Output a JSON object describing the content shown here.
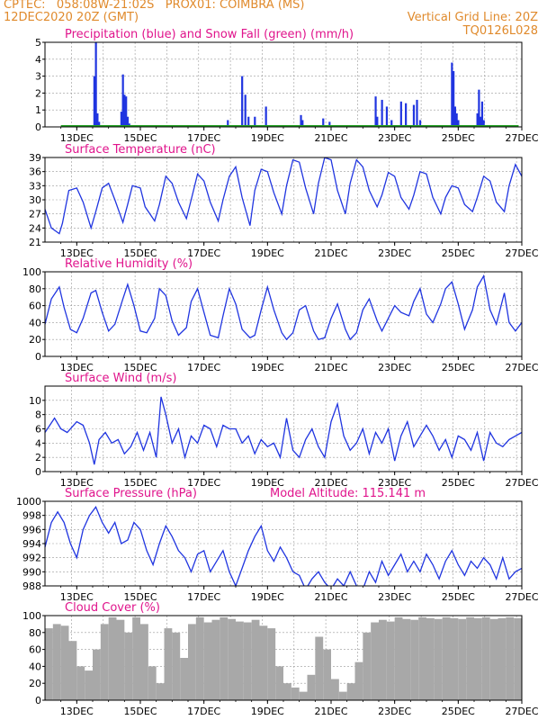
{
  "header": {
    "left_line1": "CPTEC:   058:08W-21:02S   PROX01: COIMBRA (MS)",
    "left_line2": "12DEC2020 20Z (GMT)",
    "right_line2": "Vertical Grid Line: 20Z",
    "right_line3": "TQ0126L028"
  },
  "colors": {
    "header": "#e08a2c",
    "title": "#e0148c",
    "line": "#2035e0",
    "snow": "#22a022",
    "cloud": "#a8a8a8"
  },
  "chart_data": [
    {
      "type": "bar",
      "title": "Precipitation (blue) and Snow Fall (green) (mm/h)",
      "ylim": [
        0,
        5
      ],
      "yticks": [
        "0",
        "1",
        "2",
        "3",
        "4",
        "5"
      ],
      "xticks": [
        "13DEC",
        "15DEC",
        "17DEC",
        "19DEC",
        "21DEC",
        "23DEC",
        "25DEC",
        "27DEC"
      ],
      "series": [
        {
          "color": "blue",
          "x": [
            13.55,
            13.6,
            13.65,
            13.7,
            14.4,
            14.45,
            14.5,
            14.55,
            14.6,
            14.65,
            17.75,
            18.2,
            18.3,
            18.4,
            18.6,
            18.95,
            20.05,
            20.1,
            20.75,
            20.95,
            22.4,
            22.45,
            22.6,
            22.75,
            22.9,
            23.2,
            23.35,
            23.6,
            23.7,
            23.8,
            24.8,
            24.85,
            24.9,
            24.95,
            25.0,
            25.6,
            25.65,
            25.7,
            25.75,
            25.8
          ],
          "values": [
            3.0,
            5.0,
            0.8,
            0.3,
            0.9,
            3.1,
            1.9,
            1.8,
            0.6,
            0.2,
            0.4,
            3.0,
            1.9,
            0.6,
            0.6,
            1.2,
            0.7,
            0.4,
            0.5,
            0.3,
            1.8,
            0.6,
            1.6,
            1.2,
            0.4,
            1.5,
            1.4,
            1.3,
            1.6,
            0.4,
            3.8,
            3.3,
            1.2,
            0.8,
            0.4,
            0.8,
            2.2,
            0.6,
            1.5,
            0.4
          ]
        },
        {
          "color": "green",
          "x": [
            12.5,
            26.9
          ],
          "values": [
            0.05,
            0.05
          ]
        }
      ]
    },
    {
      "type": "line",
      "title": "Surface Temperature (nC)",
      "ylim": [
        21,
        39
      ],
      "yticks": [
        "21",
        "24",
        "27",
        "30",
        "33",
        "36",
        "39"
      ],
      "xticks": [
        "13DEC",
        "15DEC",
        "17DEC",
        "19DEC",
        "21DEC",
        "23DEC",
        "25DEC",
        "27DEC"
      ],
      "x": [
        12.0,
        12.2,
        12.45,
        12.55,
        12.75,
        13.0,
        13.2,
        13.45,
        13.6,
        13.8,
        14.0,
        14.2,
        14.45,
        14.6,
        14.75,
        15.0,
        15.15,
        15.45,
        15.6,
        15.8,
        16.0,
        16.2,
        16.45,
        16.6,
        16.8,
        17.0,
        17.2,
        17.45,
        17.6,
        17.8,
        18.0,
        18.2,
        18.45,
        18.6,
        18.8,
        19.0,
        19.2,
        19.45,
        19.6,
        19.8,
        20.0,
        20.2,
        20.45,
        20.6,
        20.8,
        21.0,
        21.2,
        21.45,
        21.6,
        21.8,
        22.0,
        22.2,
        22.45,
        22.6,
        22.8,
        23.0,
        23.2,
        23.45,
        23.6,
        23.8,
        24.0,
        24.2,
        24.45,
        24.6,
        24.8,
        25.0,
        25.2,
        25.45,
        25.6,
        25.8,
        26.0,
        26.2,
        26.45,
        26.6,
        26.8,
        27.0
      ],
      "values": [
        28,
        24,
        22.8,
        25,
        32,
        32.5,
        29.5,
        24,
        27.5,
        32.5,
        33.5,
        30,
        25.2,
        29,
        33,
        32.5,
        28.5,
        25.5,
        29,
        35,
        33.5,
        29.5,
        26,
        30,
        35.5,
        34,
        29.5,
        25.5,
        30,
        35,
        37,
        30.5,
        24.5,
        32,
        36.5,
        36,
        31.5,
        27,
        33,
        38.5,
        38,
        32.5,
        27,
        33.5,
        39,
        38.5,
        32,
        27,
        33.5,
        38.5,
        37,
        32,
        28.5,
        31,
        35.8,
        35,
        30.5,
        28,
        31,
        36,
        35.5,
        30.5,
        27,
        30.5,
        33,
        32.5,
        29,
        27.5,
        30.5,
        35,
        34,
        29.5,
        27.5,
        33,
        37.5,
        35
      ]
    },
    {
      "type": "line",
      "title": "Relative Humidity (%)",
      "ylim": [
        0,
        100
      ],
      "yticks": [
        "0",
        "20",
        "40",
        "60",
        "80",
        "100"
      ],
      "xticks": [
        "13DEC",
        "15DEC",
        "17DEC",
        "19DEC",
        "21DEC",
        "23DEC",
        "25DEC",
        "27DEC"
      ],
      "x": [
        12.0,
        12.2,
        12.45,
        12.6,
        12.8,
        13.0,
        13.2,
        13.45,
        13.6,
        13.8,
        14.0,
        14.2,
        14.45,
        14.6,
        14.8,
        15.0,
        15.2,
        15.45,
        15.6,
        15.8,
        16.0,
        16.2,
        16.45,
        16.6,
        16.8,
        17.0,
        17.2,
        17.45,
        17.6,
        17.8,
        18.0,
        18.2,
        18.45,
        18.6,
        18.8,
        19.0,
        19.2,
        19.45,
        19.6,
        19.8,
        20.0,
        20.2,
        20.45,
        20.6,
        20.8,
        21.0,
        21.2,
        21.45,
        21.6,
        21.8,
        22.0,
        22.2,
        22.45,
        22.6,
        22.8,
        23.0,
        23.2,
        23.45,
        23.6,
        23.8,
        24.0,
        24.2,
        24.45,
        24.6,
        24.8,
        25.0,
        25.2,
        25.45,
        25.6,
        25.8,
        26.0,
        26.2,
        26.45,
        26.6,
        26.8,
        27.0
      ],
      "values": [
        38,
        68,
        82,
        58,
        32,
        28,
        45,
        75,
        78,
        52,
        30,
        38,
        68,
        85,
        60,
        30,
        28,
        45,
        80,
        72,
        42,
        25,
        34,
        65,
        80,
        52,
        25,
        22,
        48,
        80,
        62,
        32,
        22,
        25,
        55,
        82,
        55,
        28,
        20,
        28,
        55,
        60,
        30,
        20,
        22,
        45,
        62,
        32,
        20,
        28,
        55,
        68,
        42,
        30,
        45,
        60,
        52,
        48,
        65,
        80,
        50,
        40,
        62,
        80,
        88,
        62,
        32,
        55,
        82,
        95,
        55,
        38,
        75,
        40,
        30,
        40
      ]
    },
    {
      "type": "line",
      "title": "Surface Wind (m/s)",
      "ylim": [
        0,
        12
      ],
      "yticks": [
        "0",
        "2",
        "4",
        "6",
        "8",
        "10"
      ],
      "xticks": [
        "13DEC",
        "15DEC",
        "17DEC",
        "19DEC",
        "21DEC",
        "23DEC",
        "25DEC",
        "27DEC"
      ],
      "x": [
        12.0,
        12.3,
        12.5,
        12.7,
        13.0,
        13.2,
        13.4,
        13.55,
        13.7,
        13.9,
        14.1,
        14.3,
        14.5,
        14.7,
        14.9,
        15.1,
        15.3,
        15.5,
        15.65,
        15.8,
        16.0,
        16.2,
        16.4,
        16.6,
        16.8,
        17.0,
        17.2,
        17.4,
        17.6,
        17.8,
        18.0,
        18.2,
        18.4,
        18.6,
        18.8,
        19.0,
        19.2,
        19.4,
        19.6,
        19.8,
        20.0,
        20.2,
        20.4,
        20.6,
        20.8,
        21.0,
        21.2,
        21.4,
        21.6,
        21.8,
        22.0,
        22.2,
        22.4,
        22.6,
        22.8,
        23.0,
        23.2,
        23.4,
        23.6,
        23.8,
        24.0,
        24.2,
        24.4,
        24.6,
        24.8,
        25.0,
        25.2,
        25.4,
        25.6,
        25.8,
        26.0,
        26.2,
        26.4,
        26.6,
        26.8,
        27.0
      ],
      "values": [
        5.5,
        7.5,
        6,
        5.5,
        7,
        6.5,
        4,
        1,
        4.5,
        5.5,
        4,
        4.5,
        2.5,
        3.5,
        5.5,
        3,
        5.5,
        2,
        10.5,
        8,
        4,
        6,
        2,
        5,
        4,
        6.5,
        6,
        3.5,
        6.5,
        6,
        6,
        4,
        5,
        2.5,
        4.5,
        3.5,
        4,
        2,
        7.5,
        3,
        2,
        4.5,
        6,
        3.5,
        2,
        7,
        9.5,
        5,
        3,
        4,
        6,
        2.5,
        5.5,
        4,
        6,
        1.5,
        5,
        7,
        3.5,
        5,
        6.5,
        5,
        3,
        4.5,
        2,
        5,
        4.5,
        3,
        5.5,
        1.5,
        5.5,
        4,
        3.5,
        4.5,
        5,
        5.5
      ]
    },
    {
      "type": "line",
      "title": "Surface Pressure (hPa)",
      "annotation": "Model Altitude: 115.141  m",
      "ylim": [
        988,
        1000
      ],
      "yticks": [
        "988",
        "990",
        "992",
        "994",
        "996",
        "998",
        "1000"
      ],
      "xticks": [
        "13DEC",
        "15DEC",
        "17DEC",
        "19DEC",
        "21DEC",
        "23DEC",
        "25DEC",
        "27DEC"
      ],
      "x": [
        12.0,
        12.2,
        12.4,
        12.6,
        12.8,
        13.0,
        13.2,
        13.4,
        13.6,
        13.8,
        14.0,
        14.2,
        14.4,
        14.6,
        14.8,
        15.0,
        15.2,
        15.4,
        15.6,
        15.8,
        16.0,
        16.2,
        16.4,
        16.6,
        16.8,
        17.0,
        17.2,
        17.4,
        17.6,
        17.8,
        18.0,
        18.2,
        18.4,
        18.6,
        18.8,
        19.0,
        19.2,
        19.4,
        19.6,
        19.8,
        20.0,
        20.2,
        20.4,
        20.6,
        20.8,
        21.0,
        21.2,
        21.4,
        21.6,
        21.8,
        22.0,
        22.2,
        22.4,
        22.6,
        22.8,
        23.0,
        23.2,
        23.4,
        23.6,
        23.8,
        24.0,
        24.2,
        24.4,
        24.6,
        24.8,
        25.0,
        25.2,
        25.4,
        25.6,
        25.8,
        26.0,
        26.2,
        26.4,
        26.6,
        26.8,
        27.0
      ],
      "values": [
        993.5,
        997,
        998.5,
        997,
        994,
        992,
        996,
        998,
        999.2,
        997,
        995.5,
        997,
        994,
        994.5,
        997,
        996,
        993,
        991,
        994,
        996.5,
        995,
        993,
        992,
        990,
        992.5,
        993,
        990,
        991.5,
        993,
        990,
        988,
        990.5,
        993,
        995,
        996.5,
        993,
        991.5,
        993.5,
        992,
        990,
        989.5,
        987.5,
        989,
        990,
        988.5,
        987.5,
        989,
        988,
        990,
        988,
        987.5,
        990,
        988.5,
        991.5,
        989.5,
        991,
        992.5,
        990,
        991.5,
        990,
        992.5,
        991,
        989,
        991.5,
        993,
        991,
        989.5,
        991.5,
        990.5,
        992,
        991,
        989,
        992,
        989,
        990,
        990.5
      ]
    },
    {
      "type": "bar",
      "title": "Cloud Cover (%)",
      "ylim": [
        0,
        100
      ],
      "yticks": [
        "0",
        "20",
        "40",
        "60",
        "80",
        "100"
      ],
      "xticks": [
        "13DEC",
        "15DEC",
        "17DEC",
        "19DEC",
        "21DEC",
        "23DEC",
        "25DEC",
        "27DEC"
      ],
      "x": [
        12.0,
        12.25,
        12.5,
        12.75,
        13.0,
        13.25,
        13.5,
        13.75,
        14.0,
        14.25,
        14.5,
        14.75,
        15.0,
        15.25,
        15.5,
        15.75,
        16.0,
        16.25,
        16.5,
        16.75,
        17.0,
        17.25,
        17.5,
        17.75,
        18.0,
        18.25,
        18.5,
        18.75,
        19.0,
        19.25,
        19.5,
        19.75,
        20.0,
        20.25,
        20.5,
        20.75,
        21.0,
        21.25,
        21.5,
        21.75,
        22.0,
        22.25,
        22.5,
        22.75,
        23.0,
        23.25,
        23.5,
        23.75,
        24.0,
        24.25,
        24.5,
        24.75,
        25.0,
        25.25,
        25.5,
        25.75,
        26.0,
        26.25,
        26.5,
        26.75,
        27.0
      ],
      "values": [
        85,
        90,
        88,
        70,
        40,
        35,
        60,
        90,
        98,
        95,
        80,
        98,
        90,
        40,
        20,
        85,
        80,
        50,
        90,
        98,
        92,
        95,
        98,
        96,
        93,
        92,
        95,
        88,
        85,
        40,
        20,
        15,
        10,
        30,
        75,
        60,
        25,
        10,
        20,
        45,
        80,
        92,
        95,
        93,
        98,
        96,
        95,
        98,
        97,
        96,
        98,
        97,
        96,
        98,
        97,
        98,
        96,
        97,
        98,
        97,
        96
      ]
    }
  ]
}
